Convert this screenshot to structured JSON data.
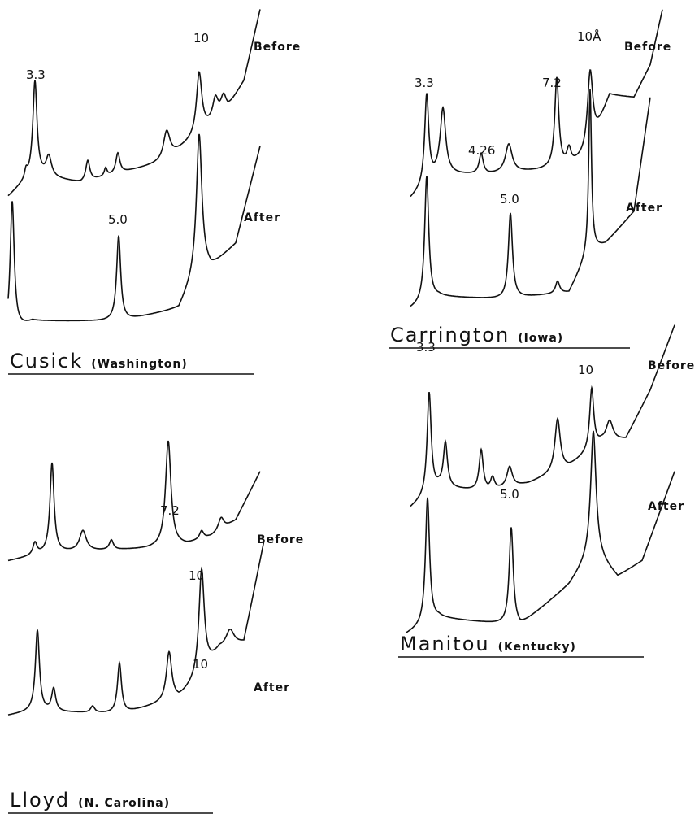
{
  "panels": [
    {
      "name": "Cusick",
      "region": "(Washington)",
      "before": "Before",
      "after": "After",
      "labels": [
        "3.3",
        "10",
        "5.0"
      ]
    },
    {
      "name": "Carrington",
      "region": "(Iowa)",
      "before": "Before",
      "after": "After",
      "labels": [
        "3.3",
        "7.2",
        "10Å",
        "4.26",
        "5.0"
      ]
    },
    {
      "name": "Lloyd",
      "region": "(N. Carolina)",
      "before": "Before",
      "after": "After",
      "labels": [
        "7.2",
        "10",
        "10"
      ]
    },
    {
      "name": "Manitou",
      "region": "(Kentucky)",
      "before": "Before",
      "after": "After",
      "labels": [
        "3.3",
        "10",
        "5.0"
      ]
    }
  ]
}
